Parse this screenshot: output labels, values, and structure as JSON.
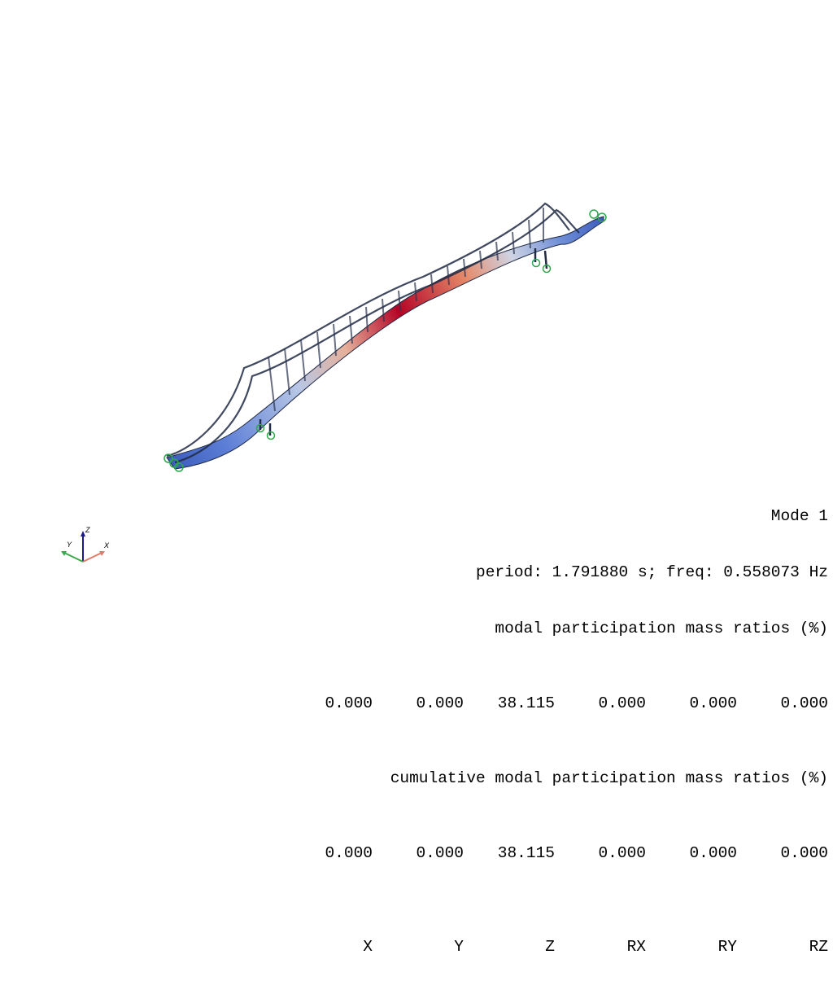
{
  "mode": {
    "title": "Mode 1",
    "period_line": "period: 1.791880 s; freq: 0.558073 Hz",
    "ratios_title": "modal participation mass ratios (%)",
    "ratios": [
      "0.000",
      "0.000",
      "38.115",
      "0.000",
      "0.000",
      "0.000"
    ],
    "cumulative_title": "cumulative modal participation mass ratios (%)",
    "cumulative": [
      "0.000",
      "0.000",
      "38.115",
      "0.000",
      "0.000",
      "0.000"
    ],
    "dof_labels": [
      "X",
      "Y",
      "Z",
      "RX",
      "RY",
      "RZ"
    ]
  },
  "axes_triad": {
    "x_label": "X",
    "y_label": "Y",
    "z_label": "Z",
    "x_color": "#e07a6a",
    "y_color": "#3ea84a",
    "z_color": "#1a1a8c"
  },
  "colors": {
    "background": "#ffffff",
    "colormap_low": "#3b5bbd",
    "colormap_mid": "#dddddd",
    "colormap_high": "#b40426",
    "support_marker": "#2ea84a",
    "edge": "#1f2a44"
  }
}
